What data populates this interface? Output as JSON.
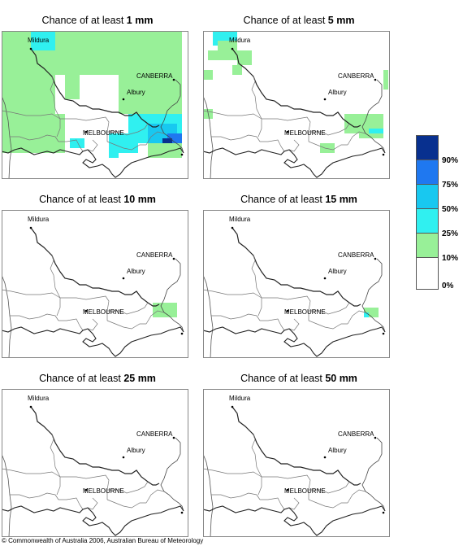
{
  "title_prefix": "Chance of at least",
  "panels": [
    {
      "amount": "1 mm"
    },
    {
      "amount": "5 mm"
    },
    {
      "amount": "10 mm"
    },
    {
      "amount": "15 mm"
    },
    {
      "amount": "25 mm"
    },
    {
      "amount": "50 mm"
    }
  ],
  "place_labels": {
    "mildura": "Mildura",
    "canberra": "CANBERRA",
    "albury": "Albury",
    "melbourne": "MELBOURNE"
  },
  "legend": {
    "labels": [
      "90%",
      "75%",
      "50%",
      "25%",
      "10%",
      "0%"
    ],
    "colors": [
      "#08308f",
      "#1f78f0",
      "#18c8f0",
      "#30f0f0",
      "#98f098",
      "#ffffff"
    ]
  },
  "copyright": "© Commonwealth of Australia 2006, Australian Bureau of Meteorology"
}
